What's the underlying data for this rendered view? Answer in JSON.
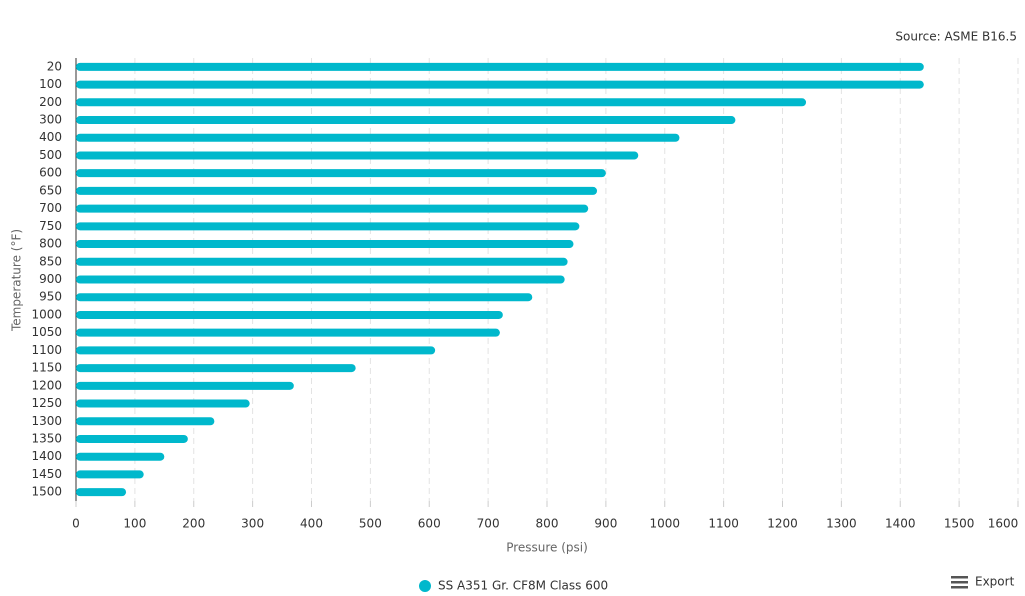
{
  "chart_data": {
    "type": "bar",
    "source": "Source: ASME B16.5",
    "x_label": "Pressure (psi)",
    "y_label": "Temperature (°F)",
    "categories": [
      "20",
      "100",
      "200",
      "300",
      "400",
      "500",
      "600",
      "650",
      "700",
      "750",
      "800",
      "850",
      "900",
      "950",
      "1000",
      "1050",
      "1100",
      "1150",
      "1200",
      "1250",
      "1300",
      "1350",
      "1400",
      "1450",
      "1500"
    ],
    "series": [
      {
        "name": "SS A351 Gr. CF8M Class 600",
        "color": "#00b8cc",
        "values": [
          1440,
          1440,
          1240,
          1120,
          1025,
          955,
          900,
          885,
          870,
          855,
          845,
          835,
          830,
          775,
          725,
          720,
          610,
          475,
          370,
          295,
          235,
          190,
          150,
          115,
          85
        ]
      }
    ],
    "xlim": [
      0,
      1600
    ],
    "xticks": [
      0,
      100,
      200,
      300,
      400,
      500,
      600,
      700,
      800,
      900,
      1000,
      1100,
      1200,
      1300,
      1400,
      1500,
      1600
    ],
    "grid": true
  },
  "toolbar": {
    "export": "Export"
  }
}
